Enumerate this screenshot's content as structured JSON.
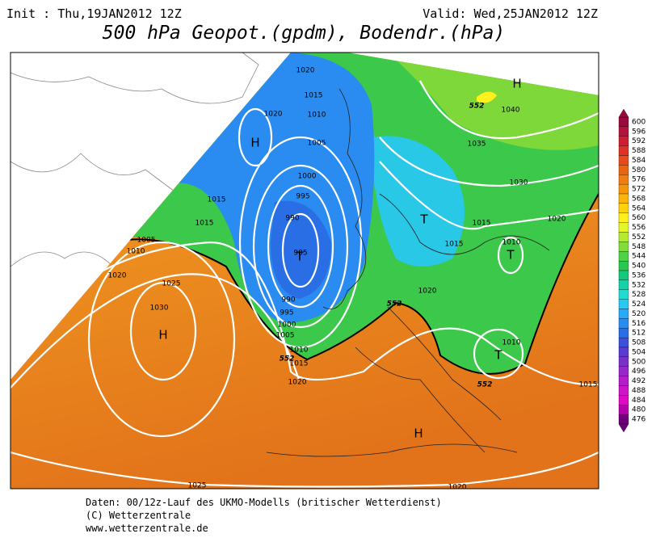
{
  "header": {
    "init": "Init : Thu,19JAN2012 12Z",
    "valid": "Valid: Wed,25JAN2012 12Z",
    "title": "500 hPa Geopot.(gpdm), Bodendr.(hPa)"
  },
  "map": {
    "isobar_labels": [
      "1020",
      "1015",
      "1020",
      "1010",
      "1005",
      "1000",
      "995",
      "990",
      "985",
      "990",
      "995",
      "1000",
      "1005",
      "1010",
      "1015",
      "1020",
      "1015",
      "1015",
      "1005",
      "1010",
      "1020",
      "1025",
      "1030",
      "1040",
      "1035",
      "1030",
      "1020",
      "1015",
      "1015",
      "1010",
      "1020",
      "1010",
      "1015",
      "1025",
      "1020"
    ],
    "geopot_labels": [
      "552",
      "552",
      "552",
      "552"
    ],
    "pressure_centers": [
      "H",
      "H",
      "H",
      "H",
      "T",
      "T",
      "T",
      "T"
    ]
  },
  "colorbar": {
    "levels": [
      600,
      596,
      592,
      588,
      584,
      580,
      576,
      572,
      568,
      564,
      560,
      556,
      552,
      548,
      544,
      540,
      536,
      532,
      528,
      524,
      520,
      516,
      512,
      508,
      504,
      500,
      496,
      492,
      488,
      484,
      480,
      476
    ],
    "colors": [
      "#9b0a3c",
      "#b4143c",
      "#cd1e32",
      "#dc3228",
      "#e64b1e",
      "#eb6414",
      "#f07d0f",
      "#f5960a",
      "#fab40a",
      "#ffd20f",
      "#fff01e",
      "#e6f528",
      "#b4eb32",
      "#82dc3c",
      "#50d246",
      "#28c850",
      "#14c87d",
      "#14d2aa",
      "#1edcd2",
      "#28c8f0",
      "#28aaf5",
      "#288cf0",
      "#286ee6",
      "#3c50dc",
      "#5a3cd2",
      "#7832c8",
      "#9628c8",
      "#b41ec8",
      "#cd14c8",
      "#dc0ac3",
      "#b400aa",
      "#6e0078"
    ]
  },
  "footer": {
    "source": "Daten: 00/12z-Lauf des UKMO-Modells (britischer Wetterdienst)",
    "copyright": "(C) Wetterzentrale",
    "url": "www.wetterzentrale.de"
  }
}
